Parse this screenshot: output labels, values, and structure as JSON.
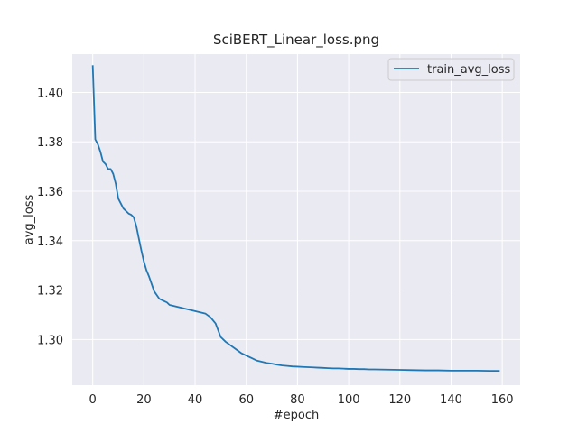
{
  "chart_data": {
    "type": "line",
    "title": "SciBERT_Linear_loss.png",
    "xlabel": "#epoch",
    "ylabel": "avg_loss",
    "xlim": [
      -8,
      167
    ],
    "ylim": [
      1.2815,
      1.4155
    ],
    "xticks": [
      0,
      20,
      40,
      60,
      80,
      100,
      120,
      140,
      160
    ],
    "yticks": [
      1.3,
      1.32,
      1.34,
      1.36,
      1.38,
      1.4
    ],
    "ytick_labels": [
      "1.30",
      "1.32",
      "1.34",
      "1.36",
      "1.38",
      "1.40"
    ],
    "grid": true,
    "legend_position": "top-right",
    "series": [
      {
        "name": "train_avg_loss",
        "color": "#1f77b4",
        "x": [
          0,
          1,
          2,
          3,
          4,
          5,
          6,
          7,
          8,
          9,
          10,
          11,
          12,
          13,
          14,
          15,
          16,
          17,
          18,
          19,
          20,
          21,
          22,
          23,
          24,
          25,
          26,
          27,
          28,
          29,
          30,
          32,
          34,
          36,
          38,
          40,
          42,
          44,
          46,
          48,
          50,
          52,
          54,
          56,
          58,
          60,
          62,
          64,
          66,
          68,
          70,
          72,
          74,
          76,
          78,
          80,
          82,
          84,
          86,
          88,
          90,
          92,
          94,
          96,
          98,
          100,
          102,
          104,
          106,
          108,
          110,
          115,
          120,
          125,
          130,
          135,
          140,
          145,
          150,
          155,
          159
        ],
        "y": [
          1.411,
          1.381,
          1.379,
          1.376,
          1.372,
          1.371,
          1.369,
          1.369,
          1.367,
          1.363,
          1.357,
          1.355,
          1.353,
          1.352,
          1.351,
          1.3505,
          1.3495,
          1.346,
          1.341,
          1.336,
          1.3315,
          1.328,
          1.3255,
          1.3225,
          1.3195,
          1.318,
          1.3165,
          1.316,
          1.3155,
          1.315,
          1.314,
          1.3135,
          1.313,
          1.3125,
          1.312,
          1.3115,
          1.311,
          1.3105,
          1.309,
          1.3065,
          1.301,
          1.299,
          1.2975,
          1.296,
          1.2945,
          1.2935,
          1.2925,
          1.2915,
          1.291,
          1.2905,
          1.2902,
          1.2898,
          1.2895,
          1.2893,
          1.2891,
          1.289,
          1.2889,
          1.2888,
          1.2887,
          1.2886,
          1.2885,
          1.2884,
          1.2883,
          1.2883,
          1.2882,
          1.2881,
          1.2881,
          1.288,
          1.288,
          1.2879,
          1.2879,
          1.2878,
          1.2877,
          1.2876,
          1.2875,
          1.2875,
          1.2874,
          1.2874,
          1.2874,
          1.2873,
          1.2873
        ]
      }
    ]
  }
}
